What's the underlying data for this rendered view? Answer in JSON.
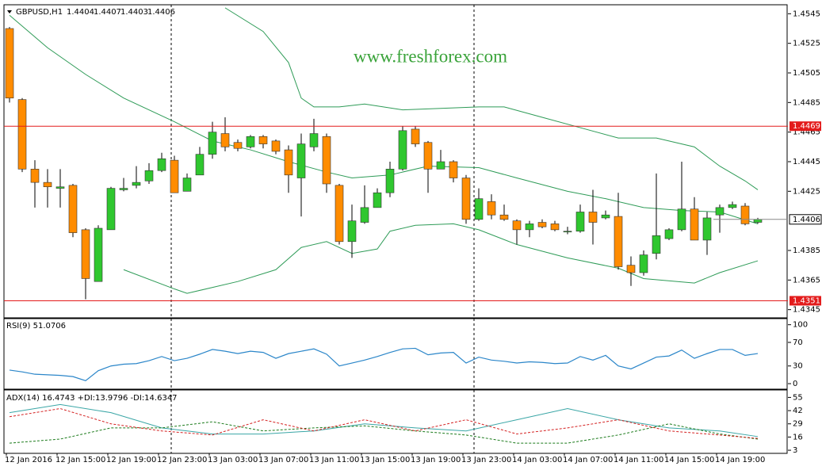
{
  "chart_data": [
    {
      "type": "candlestick",
      "header": {
        "symbol": "GBPUSD,H1",
        "values": [
          1.4404,
          1.4407,
          1.4403,
          1.4406
        ]
      },
      "watermark": "www.freshforex.com",
      "categories": [
        "12 Jan 2016",
        null,
        null,
        null,
        "12 Jan 15:00",
        null,
        null,
        null,
        "12 Jan 19:00",
        null,
        null,
        null,
        "12 Jan 23:00",
        null,
        null,
        null,
        "13 Jan 03:00",
        null,
        null,
        null,
        "13 Jan 07:00",
        null,
        null,
        null,
        "13 Jan 11:00",
        null,
        null,
        null,
        "13 Jan 15:00",
        null,
        null,
        null,
        "13 Jan 19:00",
        null,
        null,
        null,
        "13 Jan 23:00",
        null,
        null,
        null,
        "14 Jan 03:00",
        null,
        null,
        null,
        "14 Jan 07:00",
        null,
        null,
        null,
        "14 Jan 11:00",
        null,
        null,
        null,
        "14 Jan 15:00",
        null,
        null,
        null,
        "14 Jan 19:00",
        null,
        null,
        null
      ],
      "open": [
        1.4535,
        1.4487,
        1.444,
        1.4431,
        1.4427,
        1.4429,
        1.4399,
        1.4364,
        1.4399,
        1.4426,
        1.4429,
        1.4432,
        1.4439,
        1.4446,
        1.4425,
        1.4436,
        1.445,
        1.4464,
        1.4458,
        1.4455,
        1.4462,
        1.4459,
        1.4453,
        1.4434,
        1.4455,
        1.4462,
        1.4429,
        1.4391,
        1.4404,
        1.4414,
        1.4424,
        1.444,
        1.4467,
        1.4458,
        1.444,
        1.4445,
        1.4434,
        1.4406,
        1.4418,
        1.4409,
        1.4405,
        1.4399,
        1.4404,
        1.4403,
        1.4398,
        1.4398,
        1.4411,
        1.4407,
        1.4408,
        1.4375,
        1.437,
        1.4383,
        1.4393,
        1.4399,
        1.4413,
        1.4392,
        1.4409,
        1.4414,
        1.4415,
        1.4404
      ],
      "high": [
        1.4536,
        1.4488,
        1.4446,
        1.444,
        1.444,
        1.443,
        1.44,
        1.4402,
        1.4428,
        1.4434,
        1.4442,
        1.4444,
        1.4451,
        1.4449,
        1.4437,
        1.4455,
        1.4472,
        1.4475,
        1.446,
        1.4463,
        1.4463,
        1.446,
        1.4456,
        1.4464,
        1.4474,
        1.4464,
        1.443,
        1.4416,
        1.4429,
        1.4427,
        1.4445,
        1.4469,
        1.4469,
        1.4459,
        1.4453,
        1.4446,
        1.4436,
        1.4427,
        1.4423,
        1.4416,
        1.4406,
        1.4405,
        1.4406,
        1.4405,
        1.4401,
        1.4416,
        1.4426,
        1.4412,
        1.4424,
        1.4381,
        1.4385,
        1.4437,
        1.44,
        1.4445,
        1.4421,
        1.4411,
        1.4416,
        1.4418,
        1.4417,
        1.4407
      ],
      "low": [
        1.4485,
        1.4438,
        1.4414,
        1.4414,
        1.4414,
        1.4394,
        1.4352,
        1.4364,
        1.4399,
        1.4425,
        1.4427,
        1.443,
        1.4438,
        1.4424,
        1.4425,
        1.4436,
        1.4447,
        1.4452,
        1.4452,
        1.4454,
        1.4454,
        1.445,
        1.4424,
        1.4408,
        1.4452,
        1.4424,
        1.4389,
        1.438,
        1.4403,
        1.4414,
        1.4421,
        1.4439,
        1.4455,
        1.4424,
        1.4442,
        1.4431,
        1.4403,
        1.4405,
        1.4406,
        1.4405,
        1.4389,
        1.4394,
        1.44,
        1.4398,
        1.4396,
        1.4397,
        1.4389,
        1.4406,
        1.4372,
        1.4361,
        1.4368,
        1.4379,
        1.4392,
        1.4398,
        1.4392,
        1.4382,
        1.4397,
        1.4413,
        1.4402,
        1.4403
      ],
      "close": [
        1.4488,
        1.444,
        1.4431,
        1.4428,
        1.4428,
        1.4397,
        1.4366,
        1.44,
        1.4427,
        1.4427,
        1.4431,
        1.4439,
        1.4447,
        1.4424,
        1.4434,
        1.445,
        1.4465,
        1.4455,
        1.4454,
        1.4462,
        1.4457,
        1.4452,
        1.4436,
        1.4457,
        1.4464,
        1.443,
        1.4391,
        1.4405,
        1.4414,
        1.4424,
        1.444,
        1.4466,
        1.4457,
        1.444,
        1.4445,
        1.4434,
        1.4406,
        1.442,
        1.4409,
        1.4406,
        1.4399,
        1.4403,
        1.4401,
        1.4399,
        1.4398,
        1.4411,
        1.4404,
        1.4409,
        1.4374,
        1.437,
        1.4382,
        1.4395,
        1.4399,
        1.4413,
        1.4392,
        1.4407,
        1.4414,
        1.4416,
        1.4403,
        1.4406
      ],
      "up_color": "#2fc72f",
      "down_color": "#ff8c00",
      "bands": [
        {
          "color": "#2e9b57",
          "x": [
            17,
            20,
            22,
            23,
            24,
            26,
            28,
            31,
            34,
            37,
            39,
            42,
            45,
            48,
            51,
            54,
            56,
            58,
            59
          ],
          "values": [
            1.4549,
            1.4533,
            1.4512,
            1.4488,
            1.4482,
            1.4482,
            1.4484,
            1.448,
            1.4481,
            1.4482,
            1.4482,
            1.4475,
            1.4468,
            1.4461,
            1.4461,
            1.4455,
            1.4442,
            1.4432,
            1.4426
          ]
        },
        {
          "color": "#2e9b57",
          "x": [
            0,
            3,
            6,
            9,
            13,
            16,
            19,
            22,
            25,
            27,
            30,
            33,
            37,
            40,
            44,
            47,
            50,
            53,
            56,
            59
          ],
          "values": [
            1.4544,
            1.4522,
            1.4504,
            1.4488,
            1.4472,
            1.4459,
            1.4453,
            1.4445,
            1.4438,
            1.4434,
            1.4436,
            1.4442,
            1.4441,
            1.4434,
            1.4425,
            1.442,
            1.4414,
            1.4412,
            1.4411,
            1.4403
          ]
        },
        {
          "color": "#2e9b57",
          "x": [
            9,
            13,
            14,
            18,
            21,
            23,
            25,
            27,
            29,
            30,
            32,
            35,
            37,
            40,
            44,
            48,
            50,
            54,
            56,
            59
          ],
          "values": [
            1.4372,
            1.4359,
            1.4356,
            1.4364,
            1.4372,
            1.4387,
            1.4391,
            1.4383,
            1.4386,
            1.4398,
            1.4402,
            1.4403,
            1.4399,
            1.4389,
            1.438,
            1.4373,
            1.4366,
            1.4363,
            1.437,
            1.4378
          ]
        }
      ],
      "hlines": [
        {
          "value": 1.4469,
          "color": "#e31b1b"
        },
        {
          "value": 1.4351,
          "color": "#e31b1b"
        }
      ],
      "ylim": [
        1.434,
        1.455
      ],
      "yticks": [
        1.4345,
        1.4365,
        1.4385,
        1.4425,
        1.4445,
        1.4465,
        1.4485,
        1.4505,
        1.4525,
        1.4545
      ]
    },
    {
      "type": "line",
      "title": "RSI(9) 51.0706",
      "color": "#2b86c9",
      "values": [
        23,
        20,
        16,
        15,
        14,
        12,
        5,
        22,
        30,
        33,
        34,
        39,
        46,
        39,
        43,
        50,
        58,
        55,
        51,
        55,
        53,
        43,
        51,
        55,
        59,
        50,
        30,
        35,
        40,
        46,
        53,
        59,
        60,
        49,
        52,
        53,
        35,
        45,
        40,
        38,
        35,
        37,
        36,
        34,
        35,
        46,
        40,
        48,
        30,
        25,
        35,
        45,
        47,
        57,
        43,
        51,
        58,
        58,
        48,
        51.07
      ],
      "ylim": [
        -8,
        109
      ],
      "yticks": [
        0,
        30,
        70,
        100
      ]
    },
    {
      "type": "multiline",
      "title": "ADX(14) 16.4743 +DI:13.9796 -DI:14.6347",
      "series": [
        {
          "color": "#3aa6a6",
          "dash": false,
          "x": [
            0,
            4,
            8,
            12,
            16,
            20,
            24,
            28,
            32,
            36,
            40,
            44,
            48,
            52,
            56,
            59
          ],
          "values": [
            40,
            48,
            40,
            25,
            19,
            19,
            22,
            29,
            25,
            22,
            33,
            44,
            33,
            25,
            22,
            16.47
          ]
        },
        {
          "color": "#1a7a1a",
          "dash": true,
          "x": [
            0,
            4,
            8,
            12,
            16,
            20,
            24,
            28,
            32,
            36,
            40,
            44,
            48,
            52,
            56,
            59
          ],
          "values": [
            10,
            14,
            25,
            25,
            31,
            22,
            25,
            27,
            22,
            18,
            10,
            10,
            18,
            29,
            19,
            13.98
          ]
        },
        {
          "color": "#d42020",
          "dash": true,
          "x": [
            0,
            4,
            8,
            12,
            16,
            20,
            24,
            28,
            32,
            36,
            40,
            44,
            48,
            52,
            56,
            59
          ],
          "values": [
            36,
            44,
            29,
            22,
            18,
            33,
            22,
            33,
            22,
            33,
            19,
            25,
            33,
            22,
            18,
            14.63
          ]
        }
      ],
      "ylim": [
        1.5,
        60
      ],
      "yticks": [
        3,
        16,
        29,
        42,
        55
      ]
    }
  ]
}
